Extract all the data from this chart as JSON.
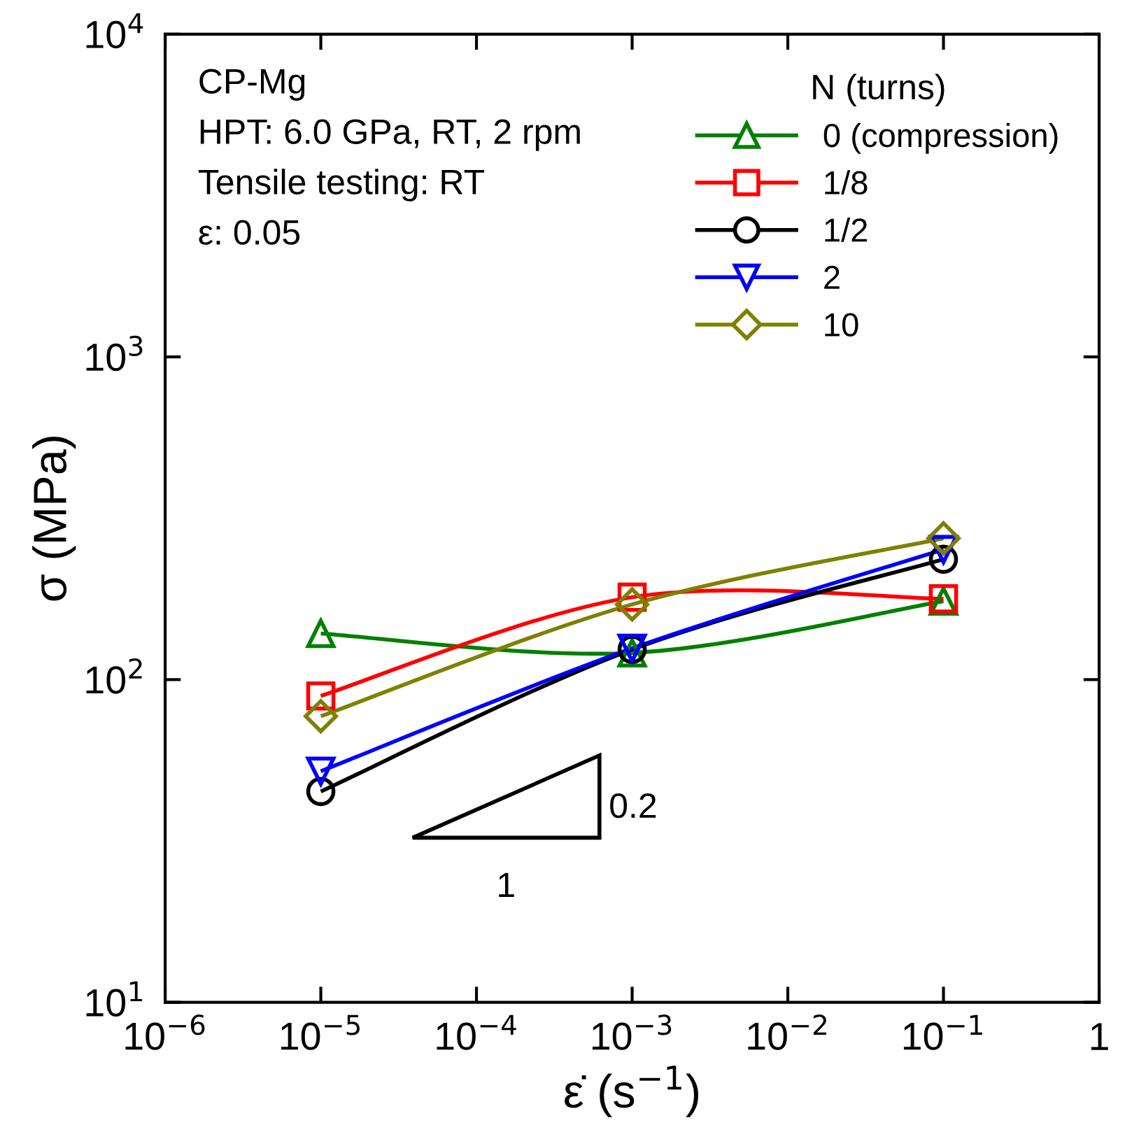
{
  "chart_data": {
    "type": "line",
    "xlabel": "ε̇ (s$^{−1}$)",
    "ylabel": "σ (MPa)",
    "legend_title": "N (turns)",
    "log": "xy",
    "x": [
      1e-05,
      0.001,
      0.1
    ],
    "xlim": [
      1e-06,
      1
    ],
    "ylim": [
      10,
      10000
    ],
    "xticks": [
      {
        "value": 1e-06,
        "label": "10$^{−6}$"
      },
      {
        "value": 1e-05,
        "label": "10$^{−5}$"
      },
      {
        "value": 0.0001,
        "label": "10$^{−4}$"
      },
      {
        "value": 0.001,
        "label": "10$^{−3}$"
      },
      {
        "value": 0.01,
        "label": "10$^{−2}$"
      },
      {
        "value": 0.1,
        "label": "10$^{−1}$"
      },
      1
    ],
    "yticks": [
      {
        "value": 10,
        "label": "10$^{1}$"
      },
      {
        "value": 100,
        "label": "10$^{2}$"
      },
      {
        "value": 1000,
        "label": "10$^{3}$"
      },
      {
        "value": 10000,
        "label": "10$^{4}$"
      }
    ],
    "grid": false,
    "legend": "top right",
    "line_style": "solid",
    "series": [
      {
        "name": "0 (compression)",
        "color": "#008000",
        "marker": "triangle",
        "values": [
          139,
          121,
          175
        ]
      },
      {
        "name": "1/8",
        "color": "#ff0000",
        "marker": "square",
        "values": [
          89,
          180,
          178
        ]
      },
      {
        "name": "1/2",
        "color": "#000000",
        "marker": "circle",
        "values": [
          45,
          124,
          236
        ]
      },
      {
        "name": "2",
        "color": "#0000ff",
        "marker": "triangle_down",
        "values": [
          52,
          125,
          253
        ]
      },
      {
        "name": "10",
        "color": "#808000",
        "marker": "diamond",
        "values": [
          77,
          171,
          274
        ]
      }
    ],
    "annotations": [
      "CP-Mg",
      "HPT: 6.0 GPa, RT, 2 rpm",
      "Tensile testing: RT",
      "ε: 0.05",
      "0.2",
      "1"
    ]
  }
}
